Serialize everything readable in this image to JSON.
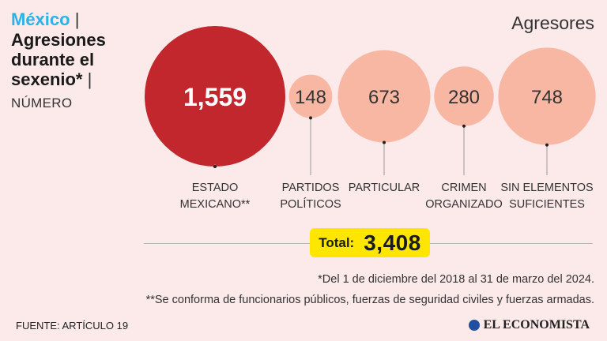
{
  "header": {
    "country": "México",
    "separator": "|",
    "title": "Agresiones durante el sexenio*",
    "subtitle": "NÚMERO"
  },
  "chart_data": {
    "type": "bubble",
    "title": "Agresiones durante el sexenio*",
    "subtitle": "NÚMERO",
    "group_label": "Agresores",
    "categories": [
      "ESTADO MEXICANO**",
      "PARTIDOS POLÍTICOS",
      "PARTICULAR",
      "CRIMEN ORGANIZADO",
      "SIN ELEMENTOS SUFICIENTES"
    ],
    "label_lines": [
      [
        "ESTADO",
        "MEXICANO**"
      ],
      [
        "PARTIDOS",
        "POLÍTICOS"
      ],
      [
        "PARTICULAR"
      ],
      [
        "CRIMEN",
        "ORGANIZADO"
      ],
      [
        "SIN ELEMENTOS",
        "SUFICIENTES"
      ]
    ],
    "values": [
      1559,
      148,
      673,
      280,
      748
    ],
    "value_labels": [
      "1,559",
      "148",
      "673",
      "280",
      "748"
    ],
    "colors": [
      "#c1272d",
      "#f7b7a3",
      "#f7b7a3",
      "#f7b7a3",
      "#f7b7a3"
    ],
    "total_label": "Total:",
    "total_value": "3,408"
  },
  "notes": {
    "note1": "*Del 1 de diciembre del 2018 al 31 de marzo del 2024.",
    "note2": "**Se conforma de funcionarios públicos, fuerzas de seguridad civiles y fuerzas armadas."
  },
  "footer": {
    "source": "FUENTE: ARTÍCULO 19",
    "logo": "EL ECONOMISTA"
  },
  "colors": {
    "background": "#fce9ea",
    "accent_blue": "#2bb3e6",
    "highlight": "#c1272d",
    "bubble": "#f7b7a3",
    "total_box": "#ffe600"
  }
}
